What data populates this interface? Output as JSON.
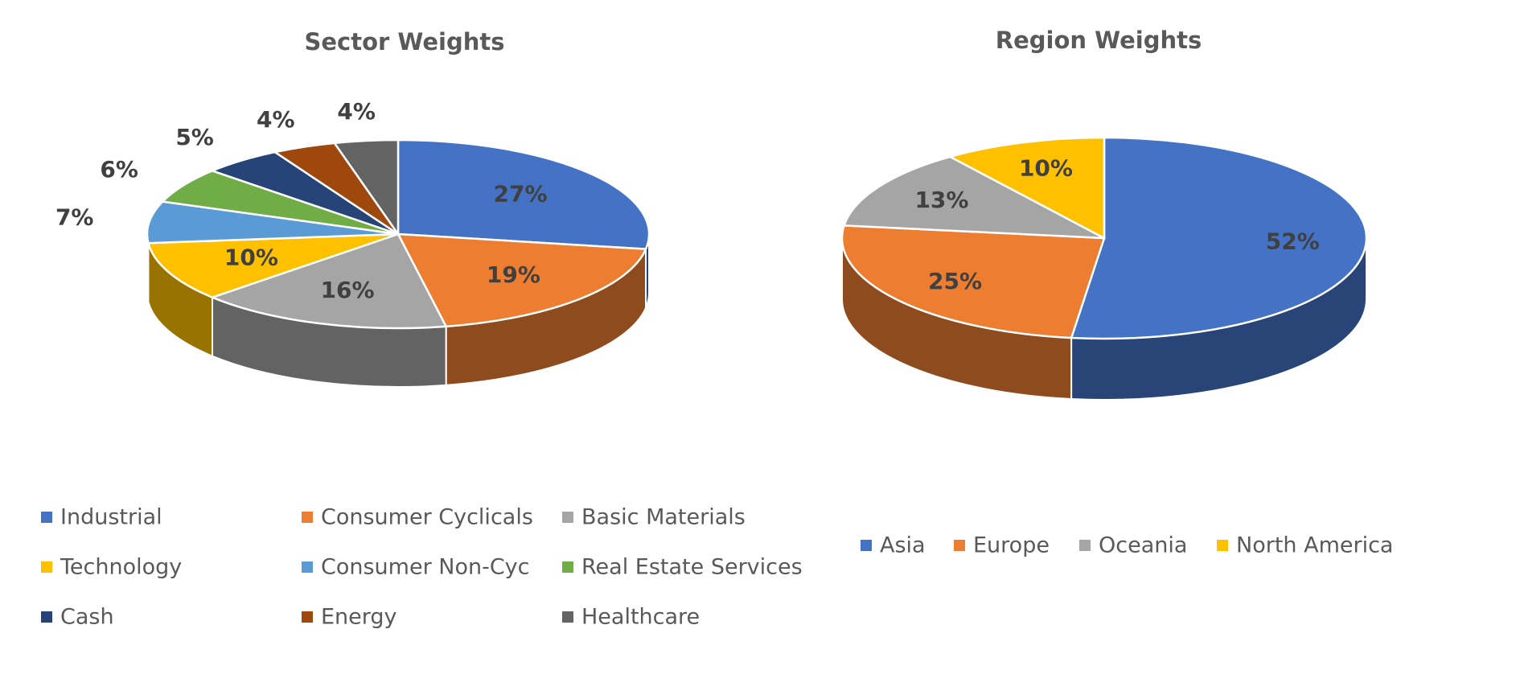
{
  "chart_data": [
    {
      "type": "pie",
      "title": "Sector Weights",
      "categories": [
        "Industrial",
        "Consumer Cyclicals",
        "Basic Materials",
        "Technology",
        "Consumer Non-Cyc",
        "Real Estate Services",
        "Cash",
        "Energy",
        "Healthcare"
      ],
      "values": [
        27,
        19,
        16,
        10,
        7,
        6,
        5,
        4,
        4
      ],
      "labels": [
        "27%",
        "19%",
        "16%",
        "10%",
        "7%",
        "6%",
        "5%",
        "4%",
        "4%"
      ],
      "colors": [
        "#4472C4",
        "#ED7D31",
        "#A5A5A5",
        "#FFC000",
        "#5B9BD5",
        "#70AD47",
        "#264478",
        "#9E480E",
        "#636363"
      ],
      "style": "3d",
      "legend": "bottom"
    },
    {
      "type": "pie",
      "title": "Region Weights",
      "categories": [
        "Asia",
        "Europe",
        "Oceania",
        "North America"
      ],
      "values": [
        52,
        25,
        13,
        10
      ],
      "labels": [
        "52%",
        "25%",
        "13%",
        "10%"
      ],
      "colors": [
        "#4472C4",
        "#ED7D31",
        "#A5A5A5",
        "#FFC000"
      ],
      "style": "3d",
      "legend": "bottom"
    }
  ]
}
